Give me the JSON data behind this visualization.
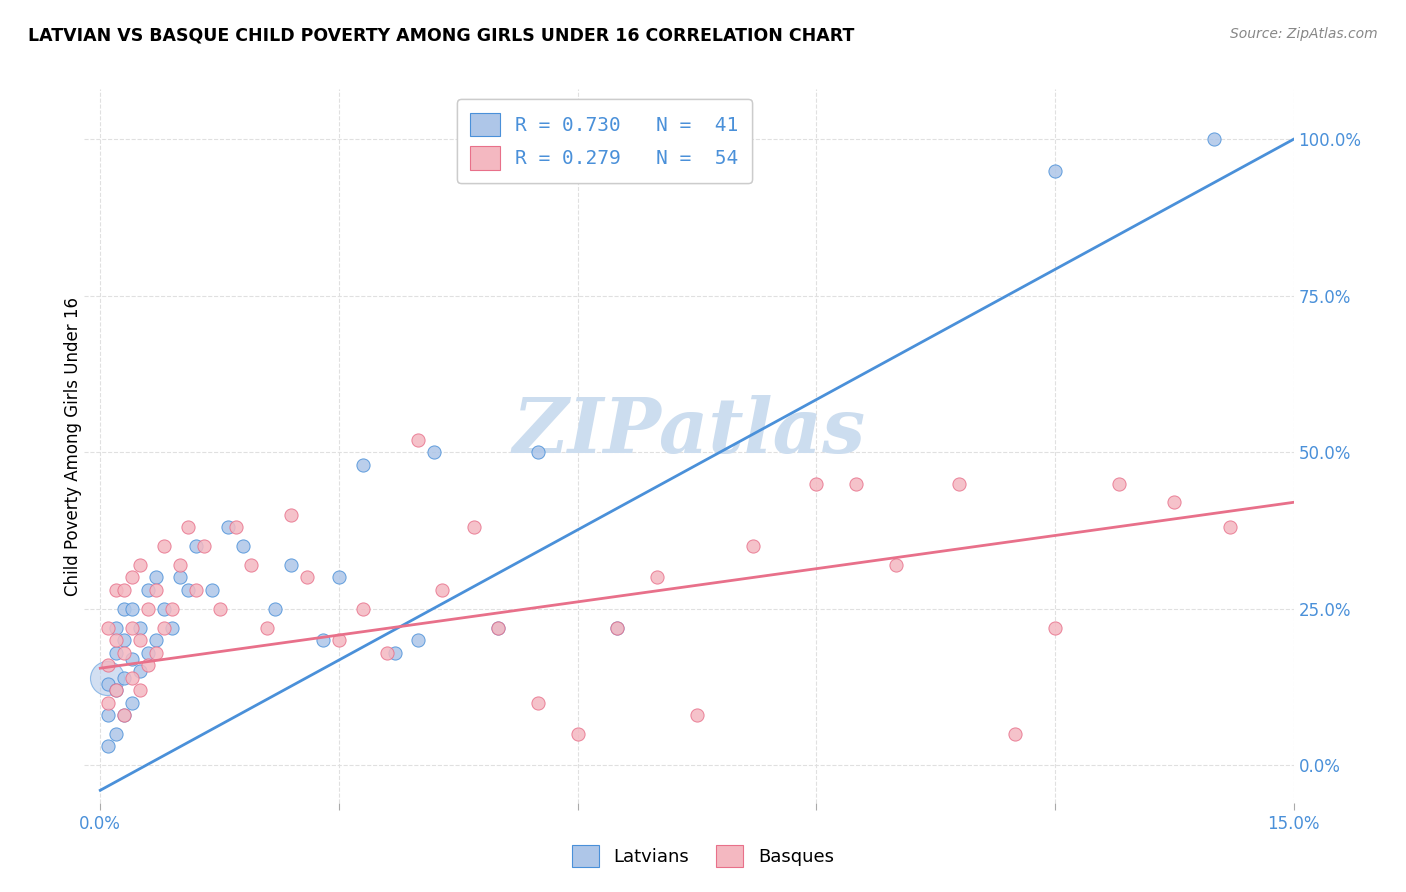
{
  "title": "LATVIAN VS BASQUE CHILD POVERTY AMONG GIRLS UNDER 16 CORRELATION CHART",
  "source": "Source: ZipAtlas.com",
  "ylabel": "Child Poverty Among Girls Under 16",
  "xlim": [
    0.0,
    0.15
  ],
  "ylim": [
    -0.06,
    1.08
  ],
  "right_yticks": [
    0.0,
    0.25,
    0.5,
    0.75,
    1.0
  ],
  "right_yticklabels": [
    "0.0%",
    "25.0%",
    "50.0%",
    "75.0%",
    "100.0%"
  ],
  "xticks": [
    0.0,
    0.03,
    0.06,
    0.09,
    0.12,
    0.15
  ],
  "xticklabels": [
    "0.0%",
    "",
    "",
    "",
    "",
    "15.0%"
  ],
  "latvians_R": 0.73,
  "latvians_N": 41,
  "basques_R": 0.279,
  "basques_N": 54,
  "latvians_color": "#aec6e8",
  "basques_color": "#f4b8c1",
  "latvians_line_color": "#4a90d9",
  "basques_line_color": "#e8708a",
  "legend_text_color": "#4a90d9",
  "watermark_color": "#ccddef",
  "background_color": "#ffffff",
  "grid_color": "#e0e0e0",
  "blue_line_x0": 0.0,
  "blue_line_y0": -0.04,
  "blue_line_x1": 0.15,
  "blue_line_y1": 1.0,
  "pink_line_x0": 0.0,
  "pink_line_y0": 0.155,
  "pink_line_x1": 0.15,
  "pink_line_y1": 0.42,
  "latvians_x": [
    0.001,
    0.001,
    0.001,
    0.002,
    0.002,
    0.002,
    0.002,
    0.003,
    0.003,
    0.003,
    0.003,
    0.004,
    0.004,
    0.004,
    0.005,
    0.005,
    0.006,
    0.006,
    0.007,
    0.007,
    0.008,
    0.009,
    0.01,
    0.011,
    0.012,
    0.014,
    0.016,
    0.018,
    0.022,
    0.024,
    0.028,
    0.03,
    0.033,
    0.037,
    0.04,
    0.042,
    0.05,
    0.055,
    0.065,
    0.12,
    0.14
  ],
  "latvians_y": [
    0.03,
    0.08,
    0.13,
    0.05,
    0.12,
    0.18,
    0.22,
    0.08,
    0.14,
    0.2,
    0.25,
    0.1,
    0.17,
    0.25,
    0.15,
    0.22,
    0.18,
    0.28,
    0.2,
    0.3,
    0.25,
    0.22,
    0.3,
    0.28,
    0.35,
    0.28,
    0.38,
    0.35,
    0.25,
    0.32,
    0.2,
    0.3,
    0.48,
    0.18,
    0.2,
    0.5,
    0.22,
    0.5,
    0.22,
    0.95,
    1.0
  ],
  "latvians_sizes": [
    80,
    80,
    80,
    80,
    80,
    80,
    80,
    80,
    80,
    80,
    80,
    80,
    80,
    80,
    80,
    80,
    80,
    80,
    80,
    80,
    80,
    80,
    80,
    80,
    80,
    80,
    80,
    80,
    80,
    80,
    80,
    80,
    80,
    80,
    80,
    80,
    80,
    80,
    80,
    100,
    110
  ],
  "basques_x": [
    0.001,
    0.001,
    0.001,
    0.002,
    0.002,
    0.002,
    0.003,
    0.003,
    0.003,
    0.004,
    0.004,
    0.004,
    0.005,
    0.005,
    0.005,
    0.006,
    0.006,
    0.007,
    0.007,
    0.008,
    0.008,
    0.009,
    0.01,
    0.011,
    0.012,
    0.013,
    0.015,
    0.017,
    0.019,
    0.021,
    0.024,
    0.026,
    0.03,
    0.033,
    0.036,
    0.04,
    0.043,
    0.047,
    0.05,
    0.055,
    0.06,
    0.065,
    0.07,
    0.075,
    0.082,
    0.09,
    0.095,
    0.1,
    0.108,
    0.115,
    0.12,
    0.128,
    0.135,
    0.142
  ],
  "basques_y": [
    0.1,
    0.16,
    0.22,
    0.12,
    0.2,
    0.28,
    0.08,
    0.18,
    0.28,
    0.14,
    0.22,
    0.3,
    0.12,
    0.2,
    0.32,
    0.16,
    0.25,
    0.18,
    0.28,
    0.22,
    0.35,
    0.25,
    0.32,
    0.38,
    0.28,
    0.35,
    0.25,
    0.38,
    0.32,
    0.22,
    0.4,
    0.3,
    0.2,
    0.25,
    0.18,
    0.52,
    0.28,
    0.38,
    0.22,
    0.1,
    0.05,
    0.22,
    0.3,
    0.08,
    0.35,
    0.45,
    0.45,
    0.32,
    0.45,
    0.05,
    0.22,
    0.45,
    0.42,
    0.38
  ],
  "latvians_cluster_x": [
    0.0008
  ],
  "latvians_cluster_y": [
    0.14
  ],
  "latvians_cluster_s": [
    600
  ]
}
